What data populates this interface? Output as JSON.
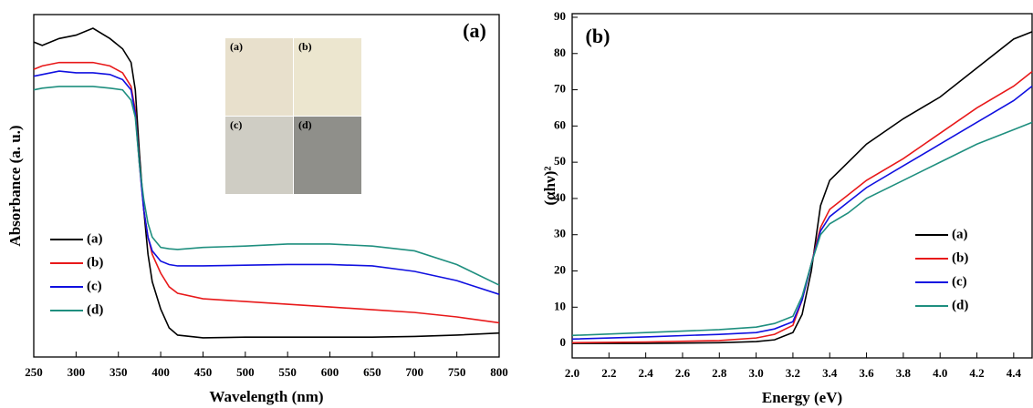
{
  "chart_data": [
    {
      "type": "line",
      "panel_label": "(a)",
      "x_label": "Wavelength (nm)",
      "y_label": "Absorbance (a. u.)",
      "x": [
        250,
        260,
        280,
        300,
        320,
        340,
        355,
        365,
        370,
        375,
        380,
        385,
        390,
        400,
        410,
        420,
        450,
        500,
        550,
        600,
        650,
        700,
        750,
        800
      ],
      "series": [
        {
          "name": "(a)",
          "color": "#000000",
          "values": [
            0.92,
            0.91,
            0.93,
            0.94,
            0.96,
            0.93,
            0.9,
            0.86,
            0.78,
            0.59,
            0.43,
            0.3,
            0.22,
            0.14,
            0.085,
            0.064,
            0.056,
            0.058,
            0.058,
            0.058,
            0.058,
            0.06,
            0.064,
            0.07
          ]
        },
        {
          "name": "(b)",
          "color": "#e8191a",
          "values": [
            0.84,
            0.85,
            0.86,
            0.86,
            0.86,
            0.85,
            0.83,
            0.79,
            0.72,
            0.56,
            0.43,
            0.35,
            0.3,
            0.245,
            0.205,
            0.186,
            0.17,
            0.162,
            0.154,
            0.146,
            0.138,
            0.13,
            0.117,
            0.1
          ]
        },
        {
          "name": "(c)",
          "color": "#1010e0",
          "values": [
            0.82,
            0.825,
            0.835,
            0.83,
            0.83,
            0.825,
            0.81,
            0.78,
            0.71,
            0.56,
            0.43,
            0.35,
            0.31,
            0.28,
            0.27,
            0.266,
            0.266,
            0.268,
            0.27,
            0.27,
            0.266,
            0.25,
            0.223,
            0.183
          ]
        },
        {
          "name": "(d)",
          "color": "#1f8f7f",
          "values": [
            0.78,
            0.785,
            0.79,
            0.79,
            0.79,
            0.785,
            0.78,
            0.75,
            0.7,
            0.56,
            0.46,
            0.39,
            0.35,
            0.32,
            0.316,
            0.314,
            0.32,
            0.324,
            0.33,
            0.33,
            0.324,
            0.31,
            0.27,
            0.21
          ]
        }
      ],
      "xlim": [
        250,
        800
      ],
      "xticks": [
        250,
        300,
        350,
        400,
        450,
        500,
        550,
        600,
        650,
        700,
        750,
        800
      ],
      "ylim": [
        0,
        1
      ],
      "legend": "lower left",
      "inset_labels": [
        "(a)",
        "(b)",
        "(c)",
        "(d)"
      ]
    },
    {
      "type": "line",
      "panel_label": "(b)",
      "x_label": "Energy (eV)",
      "y_label": "(αhν)²",
      "x": [
        2.0,
        2.4,
        2.8,
        3.0,
        3.1,
        3.2,
        3.25,
        3.3,
        3.35,
        3.4,
        3.5,
        3.6,
        3.8,
        4.0,
        4.2,
        4.4,
        4.5
      ],
      "series": [
        {
          "name": "(a)",
          "color": "#000000",
          "values": [
            0,
            0,
            0.2,
            0.5,
            1,
            3,
            8,
            20,
            38,
            45,
            50,
            55,
            62,
            68,
            76,
            84,
            86
          ]
        },
        {
          "name": "(b)",
          "color": "#e8191a",
          "values": [
            0.2,
            0.4,
            0.8,
            1.5,
            2.5,
            5,
            12,
            22,
            32,
            37,
            41,
            45,
            51,
            58,
            65,
            71,
            75
          ]
        },
        {
          "name": "(c)",
          "color": "#1010e0",
          "values": [
            1.2,
            1.8,
            2.5,
            3,
            4,
            6,
            12,
            22,
            31,
            35,
            39,
            43,
            49,
            55,
            61,
            67,
            71
          ]
        },
        {
          "name": "(d)",
          "color": "#1f8f7f",
          "values": [
            2.2,
            3,
            3.8,
            4.5,
            5.5,
            7.5,
            13,
            22,
            30,
            33,
            36,
            40,
            45,
            50,
            55,
            59,
            61
          ]
        }
      ],
      "xlim": [
        2.0,
        4.5
      ],
      "xticks": [
        {
          "value": 2,
          "label": "2.0"
        },
        2.2,
        2.4,
        2.6,
        2.8,
        {
          "value": 3,
          "label": "3.0"
        },
        3.2,
        3.4,
        3.6,
        3.8,
        {
          "value": 4,
          "label": "4.0"
        },
        4.2,
        4.4
      ],
      "ylim": [
        -4,
        91
      ],
      "yticks": [
        0,
        10,
        20,
        30,
        40,
        50,
        60,
        70,
        80,
        90
      ],
      "legend": "lower right"
    }
  ]
}
